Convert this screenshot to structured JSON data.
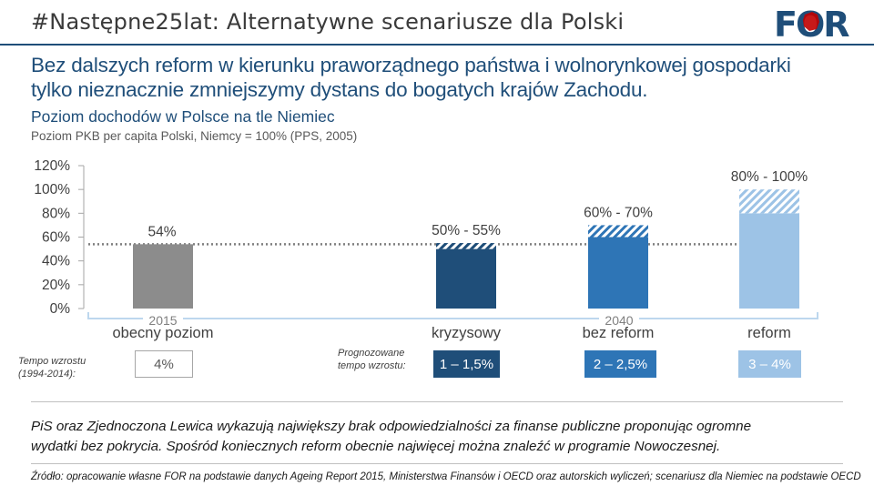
{
  "header": {
    "hashtag": "#Następne25lat: Alternatywne scenariusze dla Polski",
    "logo_text": "FOR"
  },
  "headline": {
    "line1": "Bez dalszych reform w kierunku praworządnego państwa i wolnorynkowej gospodarki",
    "line2": "tylko nieznacznie zmniejszymy dystans do bogatych krajów Zachodu."
  },
  "chart_data": {
    "type": "bar",
    "title": "Poziom dochodów w Polsce na tle Niemiec",
    "subtitle": "Poziom PKB per capita Polski, Niemcy = 100% (PPS, 2005)",
    "y_ticks": [
      "120%",
      "100%",
      "80%",
      "60%",
      "40%",
      "20%",
      "0%"
    ],
    "ylim": [
      0,
      120
    ],
    "grid": false,
    "reference_line": 54,
    "categories": [
      "obecny poziom",
      "kryzysowy",
      "bez reform",
      "reform"
    ],
    "values_low": [
      54,
      50,
      60,
      80
    ],
    "values_high": [
      54,
      55,
      70,
      100
    ],
    "data_labels": [
      "54%",
      "50% - 55%",
      "60% - 70%",
      "80% - 100%"
    ],
    "year_labels": [
      "2015",
      "2040"
    ],
    "colors": [
      "#8c8c8c",
      "#1f4e79",
      "#2e75b6",
      "#9dc3e6"
    ]
  },
  "growth": {
    "left_label_1": "Tempo wzrostu",
    "left_label_2": "(1994-2014):",
    "mid_label_1": "Prognozowane",
    "mid_label_2": "tempo wzrostu:",
    "now": "4%",
    "crisis": "1 – 1,5%",
    "noreform": "2 – 2,5%",
    "reform": "3 – 4%"
  },
  "note": {
    "line1": "PiS oraz Zjednoczona Lewica wykazują największy brak odpowiedzialności za finanse publiczne proponując ogromne",
    "line2": "wydatki bez pokrycia. Spośród koniecznych reform obecnie najwięcej można znaleźć w programie Nowoczesnej."
  },
  "source": "Źródło: opracowanie własne FOR na podstawie danych Ageing Report 2015, Ministerstwa Finansów i OECD oraz autorskich wyliczeń; scenariusz dla Niemiec na podstawie OECD"
}
